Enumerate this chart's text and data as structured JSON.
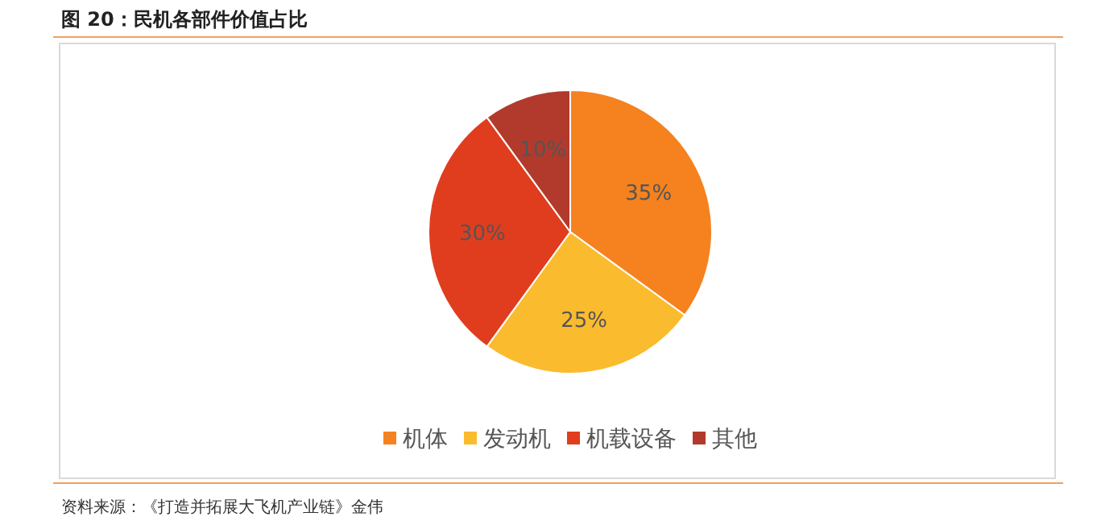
{
  "chart_data": {
    "type": "pie",
    "title": "图 20：民机各部件价值占比",
    "categories": [
      "机体",
      "发动机",
      "机载设备",
      "其他"
    ],
    "values": [
      35,
      25,
      30,
      10
    ],
    "colors": [
      "#f5821f",
      "#fbbb2e",
      "#e03d1e",
      "#b23a2c"
    ],
    "value_labels": [
      "35%",
      "25%",
      "30%",
      "10%"
    ],
    "legend": "bottom",
    "annotations": [
      "资料来源：《打造并拓展大飞机产业链》金伟"
    ]
  }
}
